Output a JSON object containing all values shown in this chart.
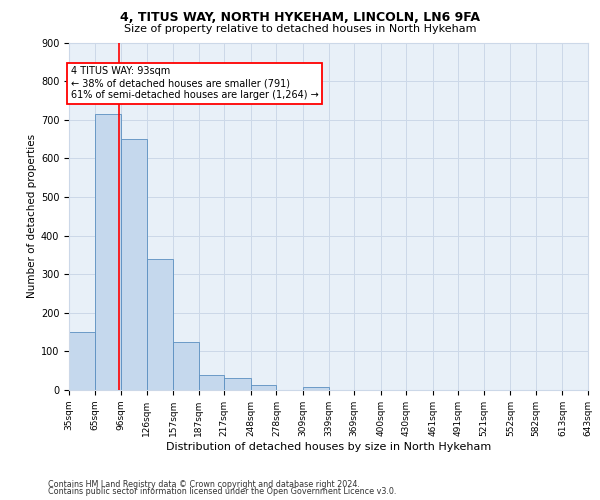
{
  "title1": "4, TITUS WAY, NORTH HYKEHAM, LINCOLN, LN6 9FA",
  "title2": "Size of property relative to detached houses in North Hykeham",
  "xlabel": "Distribution of detached houses by size in North Hykeham",
  "ylabel": "Number of detached properties",
  "footer1": "Contains HM Land Registry data © Crown copyright and database right 2024.",
  "footer2": "Contains public sector information licensed under the Open Government Licence v3.0.",
  "annotation_line1": "4 TITUS WAY: 93sqm",
  "annotation_line2": "← 38% of detached houses are smaller (791)",
  "annotation_line3": "61% of semi-detached houses are larger (1,264) →",
  "bar_left_edges": [
    35,
    65,
    96,
    126,
    157,
    187,
    217,
    248,
    278,
    309,
    339,
    369,
    400,
    430,
    461,
    491,
    521,
    552,
    582,
    613
  ],
  "bar_widths": [
    30,
    31,
    30,
    31,
    30,
    30,
    31,
    30,
    31,
    30,
    30,
    31,
    30,
    31,
    30,
    30,
    31,
    30,
    31,
    30
  ],
  "bar_heights": [
    150,
    715,
    650,
    340,
    125,
    38,
    30,
    12,
    0,
    8,
    0,
    0,
    0,
    0,
    0,
    0,
    0,
    0,
    0,
    0
  ],
  "bar_color": "#c5d8ed",
  "bar_edge_color": "#5a8fc0",
  "red_line_x": 93,
  "ylim": [
    0,
    900
  ],
  "xlim": [
    35,
    643
  ],
  "yticks": [
    0,
    100,
    200,
    300,
    400,
    500,
    600,
    700,
    800,
    900
  ],
  "xtick_labels": [
    "35sqm",
    "65sqm",
    "96sqm",
    "126sqm",
    "157sqm",
    "187sqm",
    "217sqm",
    "248sqm",
    "278sqm",
    "309sqm",
    "339sqm",
    "369sqm",
    "400sqm",
    "430sqm",
    "461sqm",
    "491sqm",
    "521sqm",
    "552sqm",
    "582sqm",
    "613sqm",
    "643sqm"
  ],
  "xtick_positions": [
    35,
    65,
    96,
    126,
    157,
    187,
    217,
    248,
    278,
    309,
    339,
    369,
    400,
    430,
    461,
    491,
    521,
    552,
    582,
    613,
    643
  ],
  "grid_color": "#ccd8e8",
  "bg_color": "#e8f0f8",
  "title1_fontsize": 9,
  "title2_fontsize": 8,
  "ylabel_fontsize": 7.5,
  "xlabel_fontsize": 8,
  "tick_fontsize": 6.5,
  "ytick_fontsize": 7,
  "footer_fontsize": 5.8,
  "ann_fontsize": 7
}
